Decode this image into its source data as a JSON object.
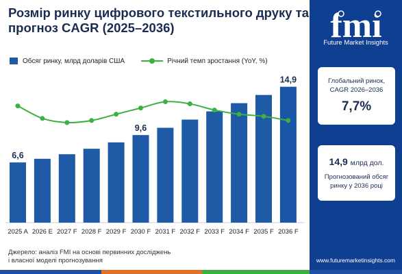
{
  "title": "Розмір ринку цифрового текстильного друку та прогноз CAGR (2025–2036)",
  "legend": {
    "bar_label": "Обсяг ринку, млрд доларів США",
    "line_label": "Річний темп зростання (YoY, %)"
  },
  "source_line1": "Джерело: аналіз FMI на основі первинних досліджень",
  "source_line2": "і власної моделі прогнозування",
  "brand": {
    "logo_text": "fmi",
    "name": "Future Market Insights",
    "url": "www.futuremarketinsights.com"
  },
  "cards": {
    "cagr_label_1": "Глобальний ринок,",
    "cagr_label_2": "CAGR 2026–2036",
    "cagr_value": "7,7%",
    "size_value": "14,9",
    "size_unit": "млрд дол.",
    "size_label_1": "Прогнозований обсяг",
    "size_label_2": "ринку у 2036 році"
  },
  "colors": {
    "bar": "#1f5aa6",
    "bar_last": "#1a56a8",
    "line": "#3cb043",
    "panel": "#0f3f91",
    "stripe": [
      "#1f4fa3",
      "#e0702a",
      "#3cb043",
      "#1f4fa3"
    ]
  },
  "chart_data": {
    "type": "bar",
    "categories": [
      "2025 A",
      "2026 E",
      "2027 F",
      "2028 F",
      "2029 F",
      "2030 F",
      "2031 F",
      "2032 F",
      "2033 F",
      "2034 F",
      "2035 F",
      "2036 F"
    ],
    "series": [
      {
        "name": "Обсяг ринку, млрд доларів США",
        "type": "bar",
        "values": [
          6.6,
          7.0,
          7.5,
          8.1,
          8.8,
          9.6,
          10.4,
          11.3,
          12.2,
          13.1,
          14.0,
          14.9
        ]
      },
      {
        "name": "Річний темп зростання (YoY, %)",
        "type": "line",
        "values": [
          7.8,
          7.5,
          7.4,
          7.45,
          7.6,
          7.75,
          7.9,
          7.85,
          7.7,
          7.6,
          7.55,
          7.45
        ]
      }
    ],
    "data_labels": [
      {
        "index": 0,
        "text": "6,6"
      },
      {
        "index": 5,
        "text": "9,6"
      },
      {
        "index": 11,
        "text": "14,9"
      }
    ],
    "ylim": [
      0,
      16
    ],
    "line_ylim": [
      5.0,
      8.5
    ],
    "grid": false,
    "legend": "top-left"
  }
}
